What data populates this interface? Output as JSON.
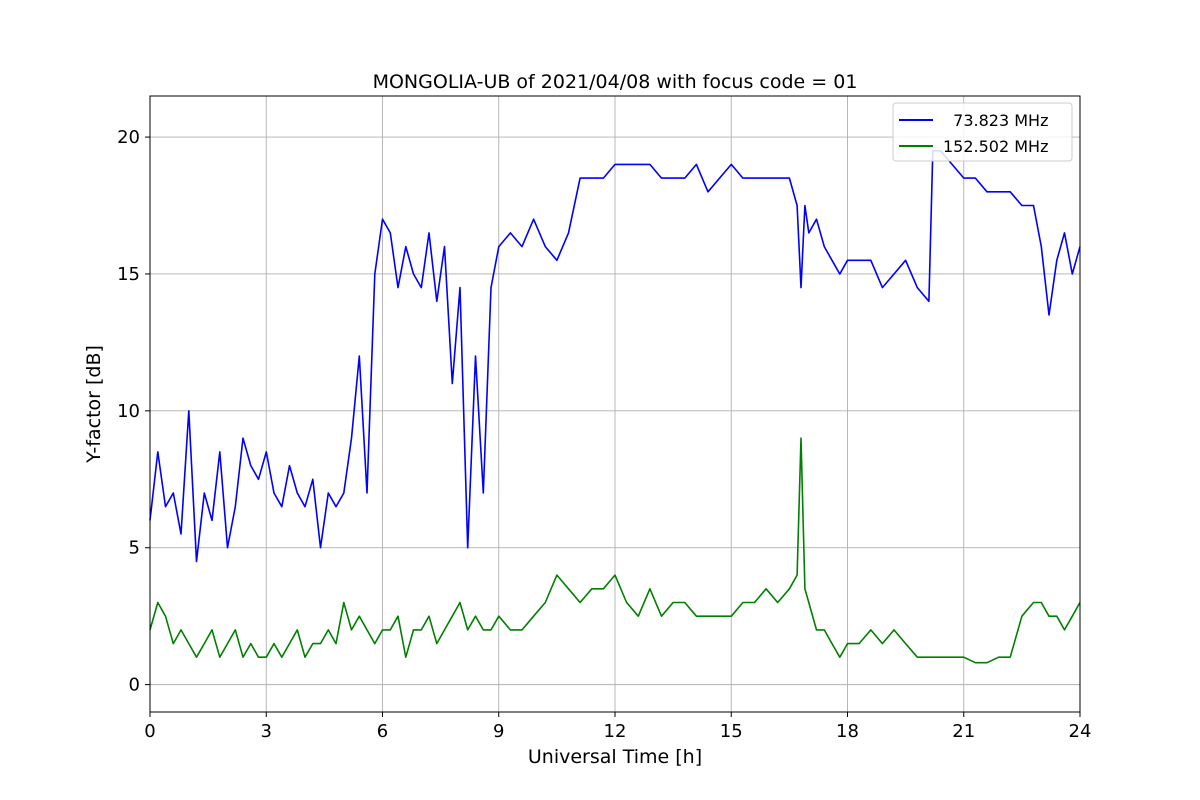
{
  "chart_data": {
    "type": "line",
    "title": "MONGOLIA-UB of 2021/04/08 with focus code = 01",
    "xlabel": "Universal Time [h]",
    "ylabel": "Y-factor [dB]",
    "xlim": [
      0,
      24
    ],
    "ylim": [
      -1,
      21.5
    ],
    "xticks": [
      0,
      3,
      6,
      9,
      12,
      15,
      18,
      21,
      24
    ],
    "yticks": [
      0,
      5,
      10,
      15,
      20
    ],
    "grid": true,
    "legend_position": "top-right",
    "series": [
      {
        "name": "  73.823 MHz",
        "color": "#0000ff",
        "x": [
          0,
          0.2,
          0.4,
          0.6,
          0.8,
          1.0,
          1.2,
          1.4,
          1.6,
          1.8,
          2.0,
          2.2,
          2.4,
          2.6,
          2.8,
          3.0,
          3.2,
          3.4,
          3.6,
          3.8,
          4.0,
          4.2,
          4.4,
          4.6,
          4.8,
          5.0,
          5.2,
          5.4,
          5.6,
          5.8,
          6.0,
          6.2,
          6.4,
          6.6,
          6.8,
          7.0,
          7.2,
          7.4,
          7.6,
          7.8,
          8.0,
          8.2,
          8.4,
          8.6,
          8.8,
          9.0,
          9.3,
          9.6,
          9.9,
          10.2,
          10.5,
          10.8,
          11.1,
          11.4,
          11.7,
          12.0,
          12.3,
          12.6,
          12.9,
          13.2,
          13.5,
          13.8,
          14.1,
          14.4,
          14.7,
          15.0,
          15.3,
          15.6,
          15.9,
          16.2,
          16.5,
          16.7,
          16.8,
          16.9,
          17.0,
          17.2,
          17.4,
          17.6,
          17.8,
          18.0,
          18.3,
          18.6,
          18.9,
          19.2,
          19.5,
          19.8,
          20.1,
          20.2,
          20.4,
          20.7,
          21.0,
          21.3,
          21.6,
          21.9,
          22.2,
          22.5,
          22.8,
          23.0,
          23.2,
          23.4,
          23.6,
          23.8,
          24.0
        ],
        "y": [
          6.0,
          8.5,
          6.5,
          7.0,
          5.5,
          10.0,
          4.5,
          7.0,
          6.0,
          8.5,
          5.0,
          6.5,
          9.0,
          8.0,
          7.5,
          8.5,
          7.0,
          6.5,
          8.0,
          7.0,
          6.5,
          7.5,
          5.0,
          7.0,
          6.5,
          7.0,
          9.0,
          12.0,
          7.0,
          15.0,
          17.0,
          16.5,
          14.5,
          16.0,
          15.0,
          14.5,
          16.5,
          14.0,
          16.0,
          11.0,
          14.5,
          5.0,
          12.0,
          7.0,
          14.5,
          16.0,
          16.5,
          16.0,
          17.0,
          16.0,
          15.5,
          16.5,
          18.5,
          18.5,
          18.5,
          19.0,
          19.0,
          19.0,
          19.0,
          18.5,
          18.5,
          18.5,
          19.0,
          18.0,
          18.5,
          19.0,
          18.5,
          18.5,
          18.5,
          18.5,
          18.5,
          17.5,
          14.5,
          17.5,
          16.5,
          17.0,
          16.0,
          15.5,
          15.0,
          15.5,
          15.5,
          15.5,
          14.5,
          15.0,
          15.5,
          14.5,
          14.0,
          19.5,
          19.5,
          19.0,
          18.5,
          18.5,
          18.0,
          18.0,
          18.0,
          17.5,
          17.5,
          16.0,
          13.5,
          15.5,
          16.5,
          15.0,
          16.0
        ]
      },
      {
        "name": "152.502 MHz",
        "color": "#008000",
        "x": [
          0,
          0.2,
          0.4,
          0.6,
          0.8,
          1.0,
          1.2,
          1.4,
          1.6,
          1.8,
          2.0,
          2.2,
          2.4,
          2.6,
          2.8,
          3.0,
          3.2,
          3.4,
          3.6,
          3.8,
          4.0,
          4.2,
          4.4,
          4.6,
          4.8,
          5.0,
          5.2,
          5.4,
          5.6,
          5.8,
          6.0,
          6.2,
          6.4,
          6.6,
          6.8,
          7.0,
          7.2,
          7.4,
          7.6,
          7.8,
          8.0,
          8.2,
          8.4,
          8.6,
          8.8,
          9.0,
          9.3,
          9.6,
          9.9,
          10.2,
          10.5,
          10.8,
          11.1,
          11.4,
          11.7,
          12.0,
          12.3,
          12.6,
          12.9,
          13.2,
          13.5,
          13.8,
          14.1,
          14.4,
          14.7,
          15.0,
          15.3,
          15.6,
          15.9,
          16.2,
          16.5,
          16.7,
          16.8,
          16.9,
          17.0,
          17.2,
          17.4,
          17.6,
          17.8,
          18.0,
          18.3,
          18.6,
          18.9,
          19.2,
          19.5,
          19.8,
          20.1,
          20.2,
          20.4,
          20.7,
          21.0,
          21.3,
          21.6,
          21.9,
          22.2,
          22.5,
          22.8,
          23.0,
          23.2,
          23.4,
          23.6,
          23.8,
          24.0
        ],
        "y": [
          2.0,
          3.0,
          2.5,
          1.5,
          2.0,
          1.5,
          1.0,
          1.5,
          2.0,
          1.0,
          1.5,
          2.0,
          1.0,
          1.5,
          1.0,
          1.0,
          1.5,
          1.0,
          1.5,
          2.0,
          1.0,
          1.5,
          1.5,
          2.0,
          1.5,
          3.0,
          2.0,
          2.5,
          2.0,
          1.5,
          2.0,
          2.0,
          2.5,
          1.0,
          2.0,
          2.0,
          2.5,
          1.5,
          2.0,
          2.5,
          3.0,
          2.0,
          2.5,
          2.0,
          2.0,
          2.5,
          2.0,
          2.0,
          2.5,
          3.0,
          4.0,
          3.5,
          3.0,
          3.5,
          3.5,
          4.0,
          3.0,
          2.5,
          3.5,
          2.5,
          3.0,
          3.0,
          2.5,
          2.5,
          2.5,
          2.5,
          3.0,
          3.0,
          3.5,
          3.0,
          3.5,
          4.0,
          9.0,
          3.5,
          3.0,
          2.0,
          2.0,
          1.5,
          1.0,
          1.5,
          1.5,
          2.0,
          1.5,
          2.0,
          1.5,
          1.0,
          1.0,
          1.0,
          1.0,
          1.0,
          1.0,
          0.8,
          0.8,
          1.0,
          1.0,
          2.5,
          3.0,
          3.0,
          2.5,
          2.5,
          2.0,
          2.5,
          3.0
        ]
      }
    ]
  }
}
